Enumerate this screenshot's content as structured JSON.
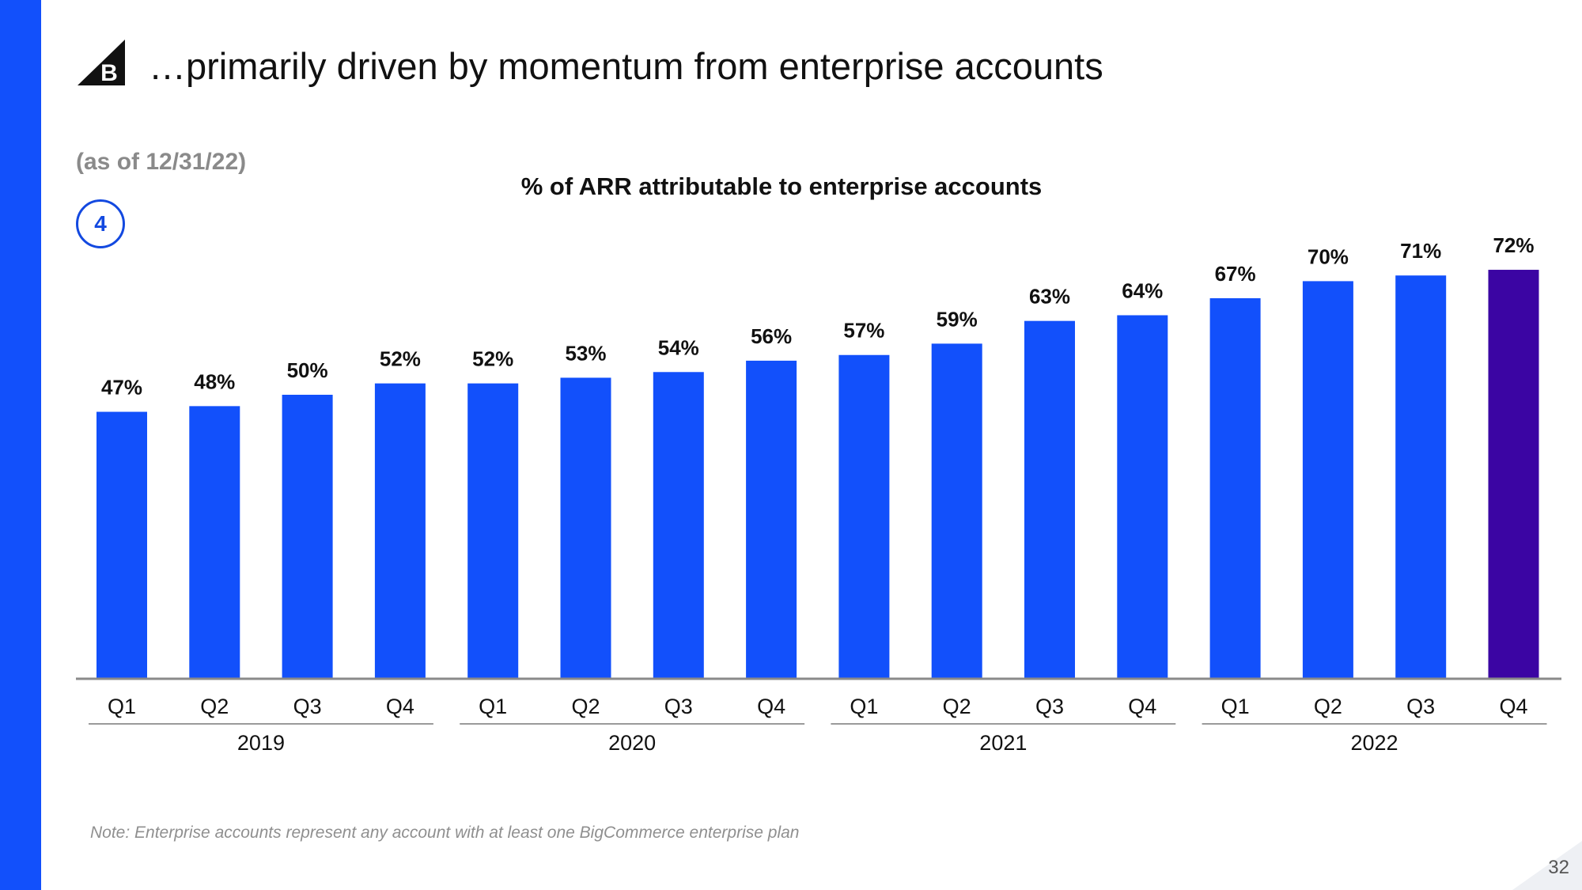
{
  "slide": {
    "title": "…primarily driven by momentum from enterprise accounts",
    "as_of": "(as of 12/31/22)",
    "step_number": "4",
    "note": "Note: Enterprise accounts represent any account with at least one BigCommerce enterprise plan",
    "page_number": "32",
    "logo_icon": "bigcommerce-logo-icon",
    "logo_letter": "B"
  },
  "colors": {
    "accent": "#1250fb",
    "highlight": "#3b05a3",
    "badge": "#1349e0",
    "axis": "#8a8a8a"
  },
  "chart_data": {
    "type": "bar",
    "title": "% of ARR attributable to enterprise accounts",
    "xlabel": "",
    "ylabel": "",
    "ylim": [
      0,
      80
    ],
    "grid": false,
    "unit": "%",
    "categories": [
      "Q1",
      "Q2",
      "Q3",
      "Q4",
      "Q1",
      "Q2",
      "Q3",
      "Q4",
      "Q1",
      "Q2",
      "Q3",
      "Q4",
      "Q1",
      "Q2",
      "Q3",
      "Q4"
    ],
    "years": [
      "2019",
      "2019",
      "2019",
      "2019",
      "2020",
      "2020",
      "2020",
      "2020",
      "2021",
      "2021",
      "2021",
      "2021",
      "2022",
      "2022",
      "2022",
      "2022"
    ],
    "year_groups": [
      "2019",
      "2020",
      "2021",
      "2022"
    ],
    "values": [
      47,
      48,
      50,
      52,
      52,
      53,
      54,
      56,
      57,
      59,
      63,
      64,
      67,
      70,
      71,
      72
    ],
    "data_labels": [
      "47%",
      "48%",
      "50%",
      "52%",
      "52%",
      "53%",
      "54%",
      "56%",
      "57%",
      "59%",
      "63%",
      "64%",
      "67%",
      "70%",
      "71%",
      "72%"
    ],
    "highlight_index": 15
  }
}
